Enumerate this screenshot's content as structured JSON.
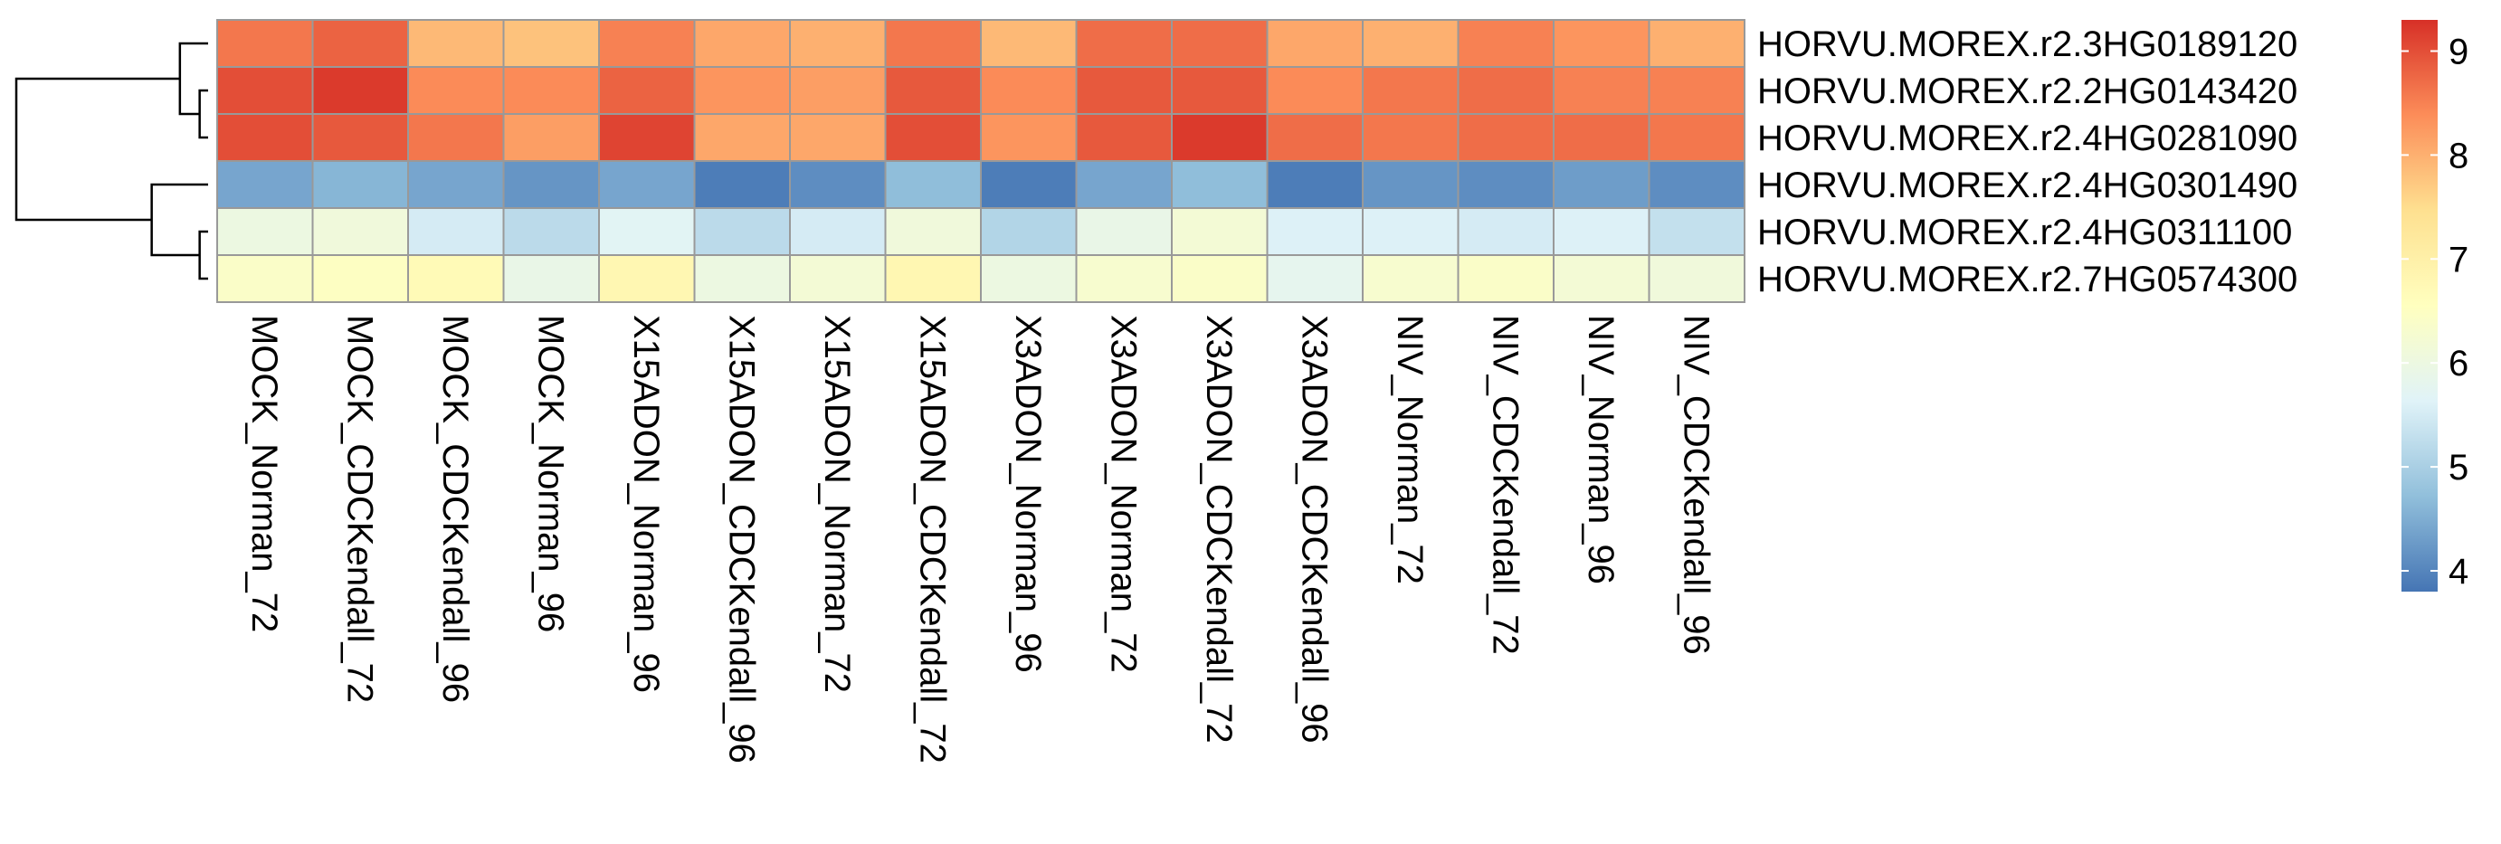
{
  "chart_data": {
    "type": "heatmap",
    "columns": [
      "MOCK_Norman_72",
      "MOCK_CDCKendall_72",
      "MOCK_CDCKendall_96",
      "MOCK_Norman_96",
      "X15ADON_Norman_96",
      "X15ADON_CDCKendall_96",
      "X15ADON_Norman_72",
      "X15ADON_CDCKendall_72",
      "X3ADON_Norman_96",
      "X3ADON_Norman_72",
      "X3ADON_CDCKendall_72",
      "X3ADON_CDCKendall_96",
      "NIV_Norman_72",
      "NIV_CDCKendall_72",
      "NIV_Norman_96",
      "NIV_CDCKendall_96"
    ],
    "rows": [
      "HORVU.MOREX.r2.3HG0189120",
      "HORVU.MOREX.r2.2HG0143420",
      "HORVU.MOREX.r2.4HG0281090",
      "HORVU.MOREX.r2.4HG0301490",
      "HORVU.MOREX.r2.4HG0311100",
      "HORVU.MOREX.r2.7HG0574300"
    ],
    "values": [
      [
        8.6,
        8.8,
        7.9,
        7.8,
        8.5,
        8.1,
        8.0,
        8.6,
        7.9,
        8.7,
        8.7,
        8.1,
        8.0,
        8.5,
        8.3,
        8.0
      ],
      [
        9.0,
        9.2,
        8.4,
        8.4,
        8.8,
        8.3,
        8.2,
        8.9,
        8.4,
        8.9,
        8.9,
        8.4,
        8.6,
        8.7,
        8.5,
        8.5
      ],
      [
        9.0,
        8.9,
        8.6,
        8.2,
        9.1,
        8.1,
        8.1,
        9.0,
        8.3,
        8.9,
        9.2,
        8.7,
        8.6,
        8.7,
        8.7,
        8.6
      ],
      [
        4.4,
        4.6,
        4.4,
        4.2,
        4.4,
        3.9,
        4.1,
        4.7,
        3.9,
        4.4,
        4.7,
        3.9,
        4.2,
        4.1,
        4.3,
        4.1
      ],
      [
        6.0,
        6.1,
        5.5,
        5.2,
        5.7,
        5.2,
        5.5,
        6.1,
        5.1,
        5.9,
        6.2,
        5.6,
        5.6,
        5.5,
        5.6,
        5.3
      ],
      [
        6.4,
        6.5,
        6.7,
        5.9,
        6.8,
        6.0,
        6.2,
        6.8,
        6.0,
        6.3,
        6.4,
        5.8,
        6.3,
        6.4,
        6.2,
        6.1
      ]
    ],
    "color_scale": {
      "colors": [
        "#4575B4",
        "#91BFDB",
        "#E0F3F8",
        "#FFFFBF",
        "#FEE090",
        "#FC8D59",
        "#D73027"
      ],
      "range": [
        3.8,
        9.3
      ],
      "ticks": [
        4,
        5,
        6,
        7,
        8,
        9
      ]
    },
    "row_dendrogram": {
      "merges": [
        [
          1,
          2
        ],
        [
          0,
          "a"
        ],
        [
          4,
          5
        ],
        [
          3,
          "c"
        ],
        [
          "b",
          "d"
        ]
      ],
      "heights": [
        0.15,
        0.5,
        0.15,
        1.0,
        3.4
      ]
    }
  }
}
